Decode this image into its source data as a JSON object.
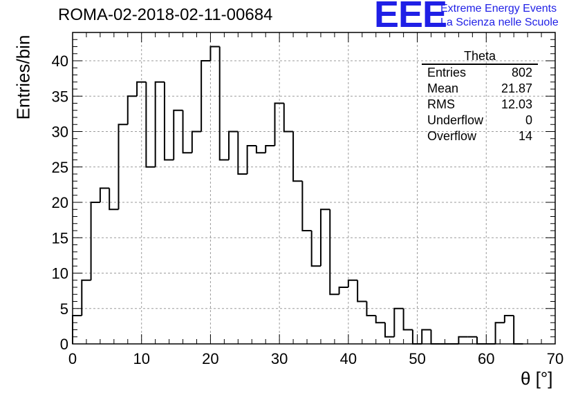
{
  "header": {
    "run_title": "ROMA-02-2018-02-11-00684",
    "logo_text": "EEE",
    "logo_line1": "Extreme Energy Events",
    "logo_line2": "La Scienza nelle Scuole"
  },
  "colors": {
    "logo": "#1f1fe6",
    "histogram": "#000000",
    "grid": "#9a9a9a"
  },
  "stats": {
    "title": "Theta",
    "rows": [
      {
        "label": "Entries",
        "value": "802"
      },
      {
        "label": "Mean",
        "value": "21.87"
      },
      {
        "label": "RMS",
        "value": "12.03"
      },
      {
        "label": "Underflow",
        "value": "0"
      },
      {
        "label": "Overflow",
        "value": "14"
      }
    ]
  },
  "chart_data": {
    "type": "histogram",
    "title": "ROMA-02-2018-02-11-00684",
    "xlabel": "θ [°]",
    "ylabel": "Entries/bin",
    "xlim": [
      0,
      70
    ],
    "ylim": [
      0,
      44
    ],
    "bin_width": 1.3333,
    "bin_edges_start": 0,
    "values": [
      4,
      9,
      20,
      22,
      19,
      31,
      35,
      37,
      25,
      37,
      26,
      33,
      27,
      30,
      40,
      42,
      26,
      30,
      24,
      28,
      27,
      28,
      34,
      30,
      23,
      16,
      11,
      19,
      7,
      8,
      9,
      6,
      4,
      3,
      1,
      5,
      2,
      0,
      2,
      0,
      0,
      0,
      1,
      1,
      0,
      0,
      3,
      4,
      0
    ],
    "xticks": [
      0,
      10,
      20,
      30,
      40,
      50,
      60,
      70
    ],
    "xtick_labels": [
      "0",
      "10",
      "20",
      "30",
      "40",
      "50",
      "60",
      "70"
    ],
    "yticks": [
      0,
      5,
      10,
      15,
      20,
      25,
      30,
      35,
      40
    ],
    "ytick_labels": [
      "0",
      "5",
      "10",
      "15",
      "20",
      "25",
      "30",
      "35",
      "40"
    ],
    "grid": true,
    "legend": "stats box top-right"
  }
}
